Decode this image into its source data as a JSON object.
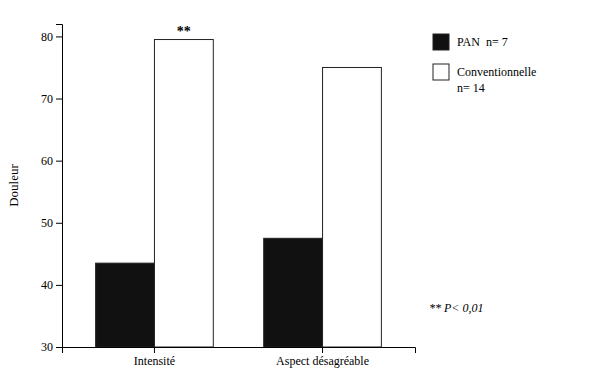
{
  "chart_data": {
    "type": "bar",
    "categories": [
      "Intensité",
      "Aspect désagréable"
    ],
    "series": [
      {
        "name": "PAN  n= 7",
        "color": "#111111",
        "values": [
          43.5,
          47.5
        ]
      },
      {
        "name": "Conventionnelle",
        "color": "#ffffff",
        "values": [
          79.5,
          75.0
        ]
      }
    ],
    "y_label": "Douleur",
    "ylim": [
      30,
      82
    ],
    "yticks": [
      30,
      40,
      50,
      60,
      70,
      80
    ],
    "grid": false,
    "legend": "right",
    "annotations": [
      {
        "text": "**",
        "category": "Intensité",
        "series": "Conventionnelle"
      },
      {
        "text": "n= 14",
        "series": "Conventionnelle"
      },
      {
        "text": "** P< 0,01"
      }
    ]
  }
}
